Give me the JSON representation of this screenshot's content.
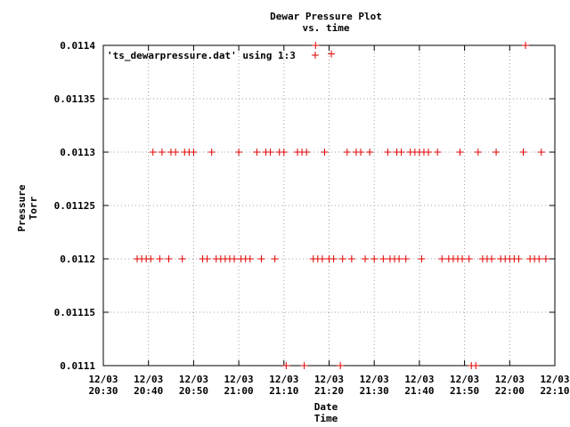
{
  "chart_data": {
    "type": "scatter",
    "title": "Dewar Pressure Plot",
    "subtitle": "vs. time",
    "xlabel": [
      "Date",
      "Time"
    ],
    "ylabel": [
      "Pressure",
      "Torr"
    ],
    "legend": {
      "label": "'ts_dewarpressure.dat' using 1:3",
      "placement": "top-left"
    },
    "grid": true,
    "color": "#e00000",
    "xlim": [
      "20:30",
      "22:10"
    ],
    "ylim": [
      0.0111,
      0.0114
    ],
    "yticks": [
      "0.0111",
      "0.01115",
      "0.0112",
      "0.01125",
      "0.0113",
      "0.01135",
      "0.0114"
    ],
    "xticks": [
      {
        "date": "12/03",
        "time": "20:30"
      },
      {
        "date": "12/03",
        "time": "20:40"
      },
      {
        "date": "12/03",
        "time": "20:50"
      },
      {
        "date": "12/03",
        "time": "21:00"
      },
      {
        "date": "12/03",
        "time": "21:10"
      },
      {
        "date": "12/03",
        "time": "21:20"
      },
      {
        "date": "12/03",
        "time": "21:30"
      },
      {
        "date": "12/03",
        "time": "21:40"
      },
      {
        "date": "12/03",
        "time": "21:50"
      },
      {
        "date": "12/03",
        "time": "22:00"
      },
      {
        "date": "12/03",
        "time": "22:10"
      }
    ],
    "series": [
      {
        "name": "'ts_dewarpressure.dat' using 1:3",
        "points": [
          [
            "21:17:00",
            0.0114
          ],
          [
            "21:20:30",
            0.011392
          ],
          [
            "22:03:30",
            0.0114
          ],
          [
            "20:41:00",
            0.0113
          ],
          [
            "20:43:00",
            0.0113
          ],
          [
            "20:45:00",
            0.0113
          ],
          [
            "20:46:00",
            0.0113
          ],
          [
            "20:48:00",
            0.0113
          ],
          [
            "20:49:00",
            0.0113
          ],
          [
            "20:50:00",
            0.0113
          ],
          [
            "20:54:00",
            0.0113
          ],
          [
            "21:00:00",
            0.0113
          ],
          [
            "21:04:00",
            0.0113
          ],
          [
            "21:06:00",
            0.0113
          ],
          [
            "21:07:00",
            0.0113
          ],
          [
            "21:09:00",
            0.0113
          ],
          [
            "21:10:00",
            0.0113
          ],
          [
            "21:13:00",
            0.0113
          ],
          [
            "21:14:00",
            0.0113
          ],
          [
            "21:15:00",
            0.0113
          ],
          [
            "21:19:00",
            0.0113
          ],
          [
            "21:24:00",
            0.0113
          ],
          [
            "21:26:00",
            0.0113
          ],
          [
            "21:27:00",
            0.0113
          ],
          [
            "21:29:00",
            0.0113
          ],
          [
            "21:33:00",
            0.0113
          ],
          [
            "21:35:00",
            0.0113
          ],
          [
            "21:36:00",
            0.0113
          ],
          [
            "21:38:00",
            0.0113
          ],
          [
            "21:39:00",
            0.0113
          ],
          [
            "21:40:00",
            0.0113
          ],
          [
            "21:41:00",
            0.0113
          ],
          [
            "21:42:00",
            0.0113
          ],
          [
            "21:44:00",
            0.0113
          ],
          [
            "21:49:00",
            0.0113
          ],
          [
            "21:53:00",
            0.0113
          ],
          [
            "21:57:00",
            0.0113
          ],
          [
            "22:03:00",
            0.0113
          ],
          [
            "22:07:00",
            0.0113
          ],
          [
            "20:37:30",
            0.0112
          ],
          [
            "20:38:30",
            0.0112
          ],
          [
            "20:39:30",
            0.0112
          ],
          [
            "20:40:30",
            0.0112
          ],
          [
            "20:42:30",
            0.0112
          ],
          [
            "20:44:30",
            0.0112
          ],
          [
            "20:47:30",
            0.0112
          ],
          [
            "20:52:00",
            0.0112
          ],
          [
            "20:53:00",
            0.0112
          ],
          [
            "20:55:00",
            0.0112
          ],
          [
            "20:56:00",
            0.0112
          ],
          [
            "20:57:00",
            0.0112
          ],
          [
            "20:58:00",
            0.0112
          ],
          [
            "20:59:00",
            0.0112
          ],
          [
            "21:00:30",
            0.0112
          ],
          [
            "21:01:30",
            0.0112
          ],
          [
            "21:02:30",
            0.0112
          ],
          [
            "21:05:00",
            0.0112
          ],
          [
            "21:08:00",
            0.0112
          ],
          [
            "21:16:30",
            0.0112
          ],
          [
            "21:17:30",
            0.0112
          ],
          [
            "21:18:30",
            0.0112
          ],
          [
            "21:20:00",
            0.0112
          ],
          [
            "21:21:00",
            0.0112
          ],
          [
            "21:23:00",
            0.0112
          ],
          [
            "21:25:00",
            0.0112
          ],
          [
            "21:28:00",
            0.0112
          ],
          [
            "21:30:00",
            0.0112
          ],
          [
            "21:32:00",
            0.0112
          ],
          [
            "21:33:30",
            0.0112
          ],
          [
            "21:34:30",
            0.0112
          ],
          [
            "21:35:30",
            0.0112
          ],
          [
            "21:37:00",
            0.0112
          ],
          [
            "21:40:30",
            0.0112
          ],
          [
            "21:45:00",
            0.0112
          ],
          [
            "21:46:30",
            0.0112
          ],
          [
            "21:47:30",
            0.0112
          ],
          [
            "21:48:30",
            0.0112
          ],
          [
            "21:49:30",
            0.0112
          ],
          [
            "21:51:00",
            0.0112
          ],
          [
            "21:54:00",
            0.0112
          ],
          [
            "21:55:00",
            0.0112
          ],
          [
            "21:56:00",
            0.0112
          ],
          [
            "21:58:00",
            0.0112
          ],
          [
            "21:59:00",
            0.0112
          ],
          [
            "22:00:00",
            0.0112
          ],
          [
            "22:01:00",
            0.0112
          ],
          [
            "22:02:00",
            0.0112
          ],
          [
            "22:04:30",
            0.0112
          ],
          [
            "22:05:30",
            0.0112
          ],
          [
            "22:06:30",
            0.0112
          ],
          [
            "22:08:00",
            0.0112
          ],
          [
            "21:10:30",
            0.0111
          ],
          [
            "21:14:30",
            0.0111
          ],
          [
            "21:22:30",
            0.0111
          ],
          [
            "21:51:30",
            0.0111
          ],
          [
            "21:52:30",
            0.0111
          ]
        ]
      }
    ]
  }
}
